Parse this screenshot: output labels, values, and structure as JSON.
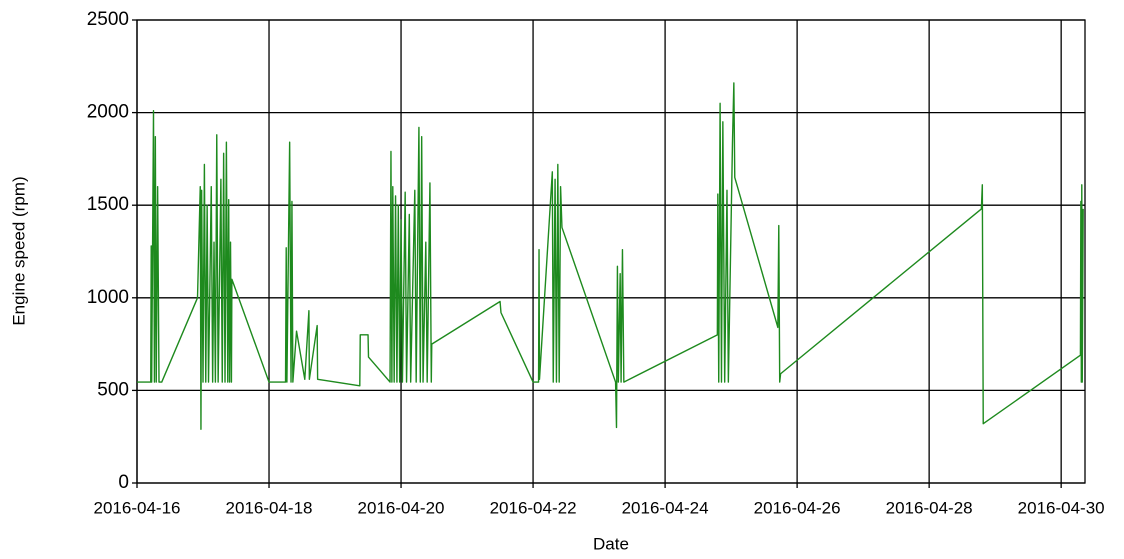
{
  "chart_data": {
    "type": "line",
    "y_label": "Engine speed (rpm)",
    "x_label": "Date",
    "color": "#1e8a1e",
    "xlim": [
      "2016-04-16 00:00",
      "2016-04-30 08:40"
    ],
    "xticks": [
      "2016-04-16",
      "2016-04-18",
      "2016-04-20",
      "2016-04-22",
      "2016-04-24",
      "2016-04-26",
      "2016-04-28",
      "2016-04-30"
    ],
    "ylim": [
      0,
      2500
    ],
    "yticks": [
      0,
      500,
      1000,
      1500,
      2000,
      2500
    ],
    "grid": true,
    "x": [
      "2016-04-16 00:00",
      "2016-04-16 05:00",
      "2016-04-16 05:10",
      "2016-04-16 05:20",
      "2016-04-16 06:00",
      "2016-04-16 06:20",
      "2016-04-16 06:40",
      "2016-04-16 07:00",
      "2016-04-16 07:30",
      "2016-04-16 08:00",
      "2016-04-16 09:00",
      "2016-04-16 22:00",
      "2016-04-16 23:00",
      "2016-04-16 23:15",
      "2016-04-16 23:30",
      "2016-04-17 00:00",
      "2016-04-17 00:30",
      "2016-04-17 01:00",
      "2016-04-17 01:30",
      "2016-04-17 02:00",
      "2016-04-17 03:00",
      "2016-04-17 03:30",
      "2016-04-17 04:00",
      "2016-04-17 04:30",
      "2016-04-17 05:00",
      "2016-04-17 05:30",
      "2016-04-17 06:30",
      "2016-04-17 07:00",
      "2016-04-17 07:30",
      "2016-04-17 08:00",
      "2016-04-17 08:30",
      "2016-04-17 09:00",
      "2016-04-17 09:20",
      "2016-04-17 09:40",
      "2016-04-17 10:00",
      "2016-04-17 10:20",
      "2016-04-17 10:30",
      "2016-04-18 00:00",
      "2016-04-18 06:00",
      "2016-04-18 06:15",
      "2016-04-18 06:30",
      "2016-04-18 07:30",
      "2016-04-18 08:00",
      "2016-04-18 08:20",
      "2016-04-18 08:40",
      "2016-04-18 10:00",
      "2016-04-18 13:00",
      "2016-04-18 14:30",
      "2016-04-18 14:40",
      "2016-04-18 17:30",
      "2016-04-18 17:40",
      "2016-04-19 09:00",
      "2016-04-19 09:10",
      "2016-04-19 12:00",
      "2016-04-19 12:10",
      "2016-04-19 20:00",
      "2016-04-19 20:20",
      "2016-04-19 20:40",
      "2016-04-19 21:00",
      "2016-04-19 21:30",
      "2016-04-19 22:00",
      "2016-04-19 22:30",
      "2016-04-19 23:00",
      "2016-04-19 23:30",
      "2016-04-20 00:00",
      "2016-04-20 00:30",
      "2016-04-20 01:30",
      "2016-04-20 02:00",
      "2016-04-20 03:00",
      "2016-04-20 03:30",
      "2016-04-20 05:00",
      "2016-04-20 05:30",
      "2016-04-20 06:30",
      "2016-04-20 07:00",
      "2016-04-20 07:30",
      "2016-04-20 08:00",
      "2016-04-20 09:00",
      "2016-04-20 09:30",
      "2016-04-20 10:30",
      "2016-04-20 11:00",
      "2016-04-20 11:10",
      "2016-04-21 12:00",
      "2016-04-21 12:20",
      "2016-04-22 00:00",
      "2016-04-22 02:00",
      "2016-04-22 02:10",
      "2016-04-22 02:20",
      "2016-04-22 07:00",
      "2016-04-22 07:20",
      "2016-04-22 08:00",
      "2016-04-22 08:30",
      "2016-04-22 09:00",
      "2016-04-22 09:30",
      "2016-04-22 10:00",
      "2016-04-22 10:30",
      "2016-04-23 06:00",
      "2016-04-23 06:20",
      "2016-04-23 06:40",
      "2016-04-23 07:00",
      "2016-04-23 07:40",
      "2016-04-23 08:00",
      "2016-04-23 08:30",
      "2016-04-23 09:00",
      "2016-04-24 19:00",
      "2016-04-24 19:10",
      "2016-04-24 19:30",
      "2016-04-24 20:00",
      "2016-04-24 20:30",
      "2016-04-24 21:00",
      "2016-04-24 21:40",
      "2016-04-24 22:30",
      "2016-04-24 23:00",
      "2016-04-25 00:30",
      "2016-04-25 01:00",
      "2016-04-25 01:20",
      "2016-04-25 17:00",
      "2016-04-25 17:20",
      "2016-04-25 17:40",
      "2016-04-25 18:00",
      "2016-04-28 19:00",
      "2016-04-28 19:20",
      "2016-04-28 19:40",
      "2016-04-30 07:00",
      "2016-04-30 07:10",
      "2016-04-30 07:20",
      "2016-04-30 07:30",
      "2016-04-30 07:40",
      "2016-04-30 08:00"
    ],
    "values": [
      545,
      545,
      1280,
      545,
      2010,
      545,
      1870,
      545,
      1600,
      545,
      545,
      1000,
      1600,
      290,
      1580,
      545,
      1720,
      545,
      1500,
      545,
      1600,
      545,
      1300,
      545,
      1880,
      545,
      1640,
      545,
      1780,
      545,
      1840,
      545,
      1530,
      545,
      1300,
      545,
      1100,
      545,
      545,
      1270,
      545,
      1840,
      545,
      1520,
      545,
      820,
      560,
      930,
      560,
      850,
      560,
      525,
      800,
      800,
      680,
      545,
      1790,
      545,
      1600,
      545,
      1550,
      545,
      1500,
      545,
      1420,
      545,
      1570,
      545,
      1450,
      545,
      1580,
      545,
      1920,
      545,
      1870,
      545,
      1300,
      545,
      1620,
      545,
      750,
      980,
      920,
      545,
      545,
      1260,
      560,
      1680,
      545,
      1640,
      545,
      1720,
      545,
      1600,
      1380,
      545,
      300,
      1170,
      545,
      1130,
      545,
      1260,
      545,
      800,
      1560,
      545,
      2050,
      545,
      1950,
      545,
      1580,
      545,
      1840,
      2160,
      1650,
      840,
      1390,
      545,
      590,
      1480,
      1610,
      320,
      690,
      1520,
      545,
      1610,
      545,
      1480
    ]
  }
}
